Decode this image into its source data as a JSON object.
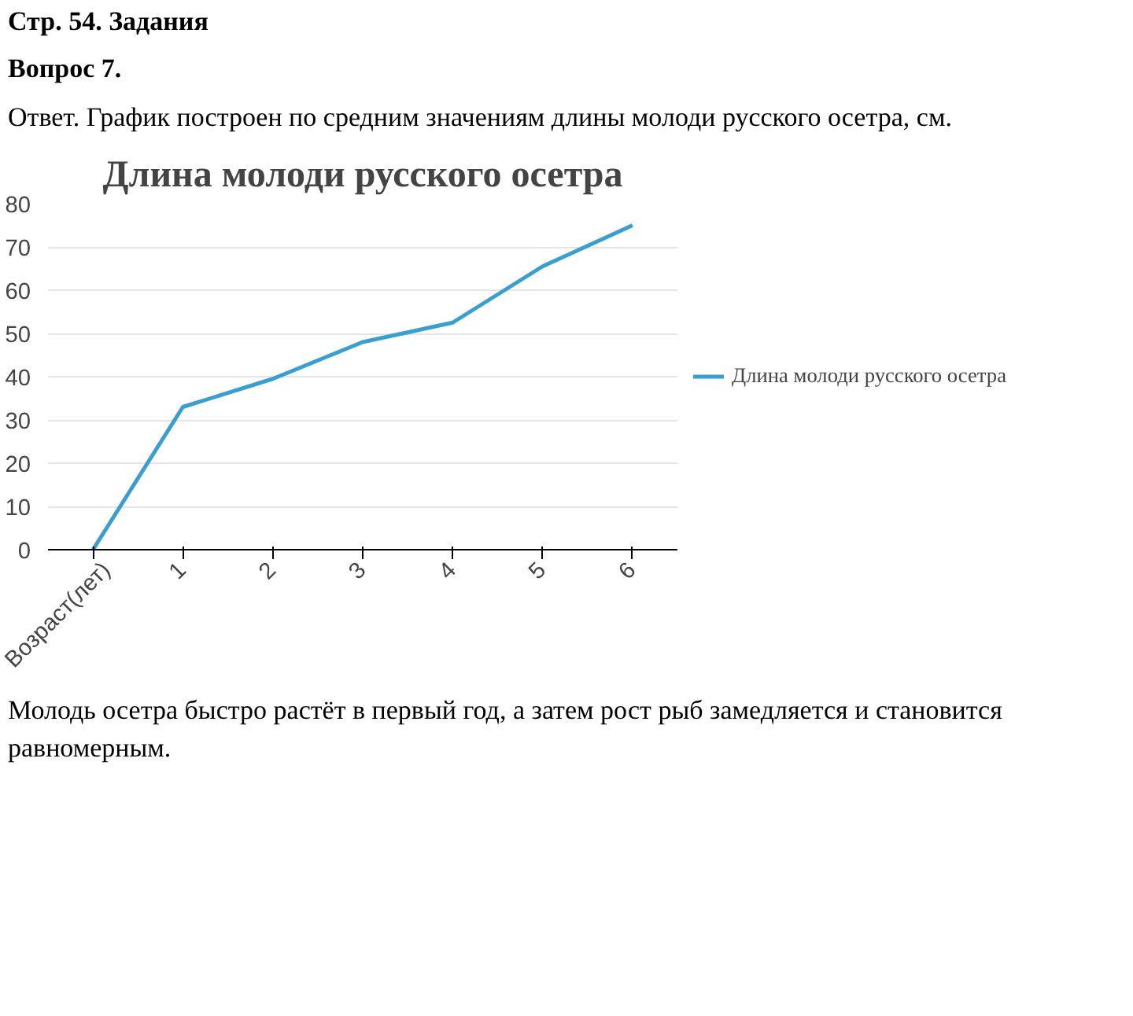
{
  "chart_data": {
    "type": "line",
    "title": "Длина молоди русского осетра",
    "categories": [
      "Возраст(лет)",
      "1",
      "2",
      "3",
      "4",
      "5",
      "6"
    ],
    "series": [
      {
        "name": "Длина молоди русского осетра",
        "color": "#3a9fd0",
        "values": [
          0,
          33,
          39.5,
          48,
          52.5,
          65.5,
          75
        ]
      }
    ],
    "ylim": [
      0,
      80
    ],
    "yticks": [
      0,
      10,
      20,
      30,
      40,
      50,
      60,
      70,
      80
    ],
    "grid": "y",
    "legend": "right",
    "marker": "none",
    "line_style": "solid",
    "annotations": [
      "Стр. 54. Задания",
      "Вопрос 7.",
      "Ответ. График построен по средним значениям длины молоди русского осетра, см.",
      "Молодь осетра быстро растёт в первый год, а затем рост рыб замедляется и становится равномерным."
    ]
  }
}
